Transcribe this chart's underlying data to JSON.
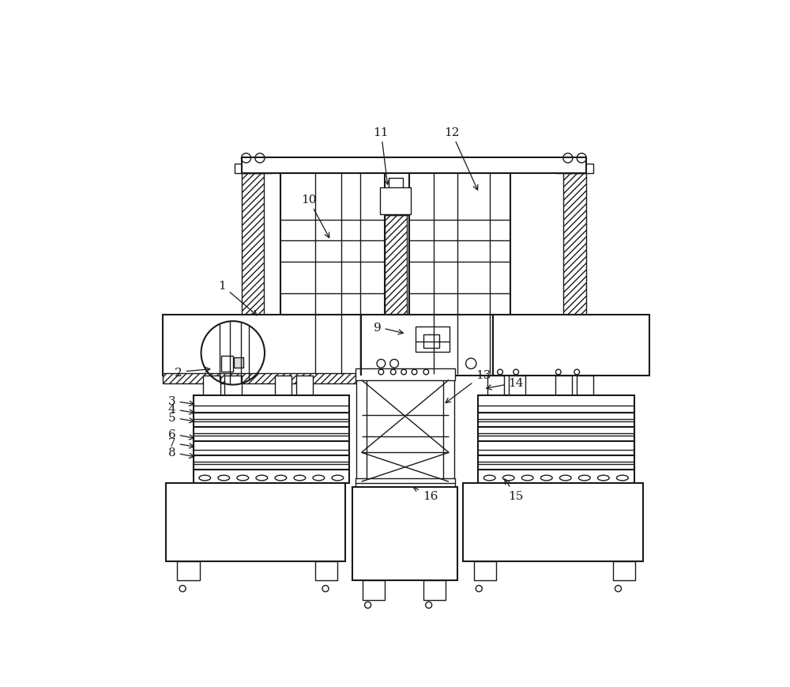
{
  "bg_color": "#ffffff",
  "lc": "#1a1a1a",
  "lw": 1.0,
  "lw_thick": 1.5,
  "hatch_density": "////",
  "label_color": "#1a1a1a",
  "label_fontsize": 11,
  "annotations": {
    "1": {
      "lp": [
        0.155,
        0.615
      ],
      "ae": [
        0.225,
        0.555
      ]
    },
    "2": {
      "lp": [
        0.072,
        0.452
      ],
      "ae": [
        0.138,
        0.458
      ]
    },
    "3": {
      "lp": [
        0.06,
        0.398
      ],
      "ae": [
        0.108,
        0.39
      ]
    },
    "4": {
      "lp": [
        0.06,
        0.382
      ],
      "ae": [
        0.108,
        0.374
      ]
    },
    "5": {
      "lp": [
        0.06,
        0.366
      ],
      "ae": [
        0.108,
        0.358
      ]
    },
    "6": {
      "lp": [
        0.06,
        0.335
      ],
      "ae": [
        0.108,
        0.326
      ]
    },
    "7": {
      "lp": [
        0.06,
        0.318
      ],
      "ae": [
        0.108,
        0.31
      ]
    },
    "8": {
      "lp": [
        0.06,
        0.3
      ],
      "ae": [
        0.108,
        0.291
      ]
    },
    "9": {
      "lp": [
        0.448,
        0.537
      ],
      "ae": [
        0.503,
        0.524
      ]
    },
    "10": {
      "lp": [
        0.318,
        0.778
      ],
      "ae": [
        0.36,
        0.7
      ]
    },
    "11": {
      "lp": [
        0.455,
        0.905
      ],
      "ae": [
        0.468,
        0.8
      ]
    },
    "12": {
      "lp": [
        0.588,
        0.905
      ],
      "ae": [
        0.64,
        0.79
      ]
    },
    "13": {
      "lp": [
        0.648,
        0.447
      ],
      "ae": [
        0.572,
        0.39
      ]
    },
    "14": {
      "lp": [
        0.71,
        0.432
      ],
      "ae": [
        0.648,
        0.42
      ]
    },
    "15": {
      "lp": [
        0.71,
        0.218
      ],
      "ae": [
        0.685,
        0.255
      ]
    },
    "16": {
      "lp": [
        0.548,
        0.218
      ],
      "ae": [
        0.51,
        0.238
      ]
    }
  }
}
